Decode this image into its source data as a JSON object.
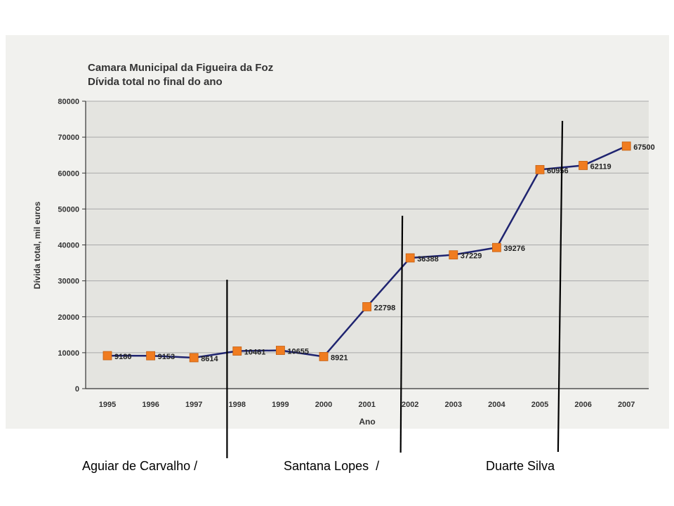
{
  "chart_data": {
    "type": "line",
    "title": "Camara Municipal da Figueira da Foz",
    "subtitle": "Dívida total no final do ano",
    "xlabel": "Ano",
    "ylabel": "Dívida total, mil euros",
    "ylim": [
      0,
      80000
    ],
    "yticks": [
      "0",
      "10000",
      "20000",
      "30000",
      "40000",
      "50000",
      "60000",
      "70000",
      "80000"
    ],
    "categories": [
      "1995",
      "1996",
      "1997",
      "1998",
      "1999",
      "2000",
      "2001",
      "2002",
      "2003",
      "2004",
      "2005",
      "2006",
      "2007"
    ],
    "values": [
      9180,
      9153,
      8614,
      10461,
      10655,
      8921,
      22798,
      36388,
      37229,
      39276,
      60956,
      62119,
      67500
    ],
    "data_labels": [
      "9180",
      "9153",
      "8614",
      "10461",
      "10655",
      "8921",
      "22798",
      "36388",
      "37229",
      "39276",
      "60956",
      "62119",
      "67500"
    ],
    "grid": true,
    "colors": {
      "line": "#1f2470",
      "marker": "#f07c20",
      "grid": "#a9a9a9"
    }
  },
  "annotations": [
    {
      "label": "Aguiar de Carvalho /",
      "at_year": 1997.75
    },
    {
      "label": "Santana Lopes  /",
      "at_year": 2001.8
    },
    {
      "label": "Duarte Silva",
      "at_year": 2005.45
    }
  ]
}
